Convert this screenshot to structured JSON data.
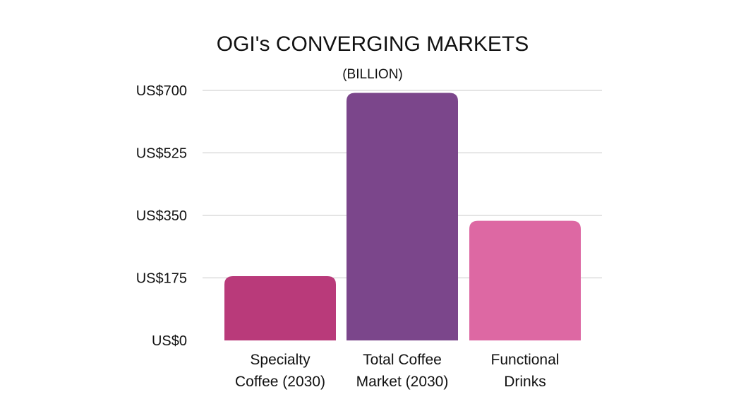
{
  "chart_data": {
    "type": "bar",
    "title": "OGI's CONVERGING MARKETS",
    "subtitle": "(BILLION)",
    "categories": [
      [
        "Specialty",
        "Coffee (2030)"
      ],
      [
        "Total Coffee",
        "Market (2030)"
      ],
      [
        "Functional",
        "Drinks"
      ]
    ],
    "values": [
      180,
      693,
      335
    ],
    "colors": [
      "#b93a7a",
      "#7b468b",
      "#dd68a3"
    ],
    "yticks": [
      0,
      175,
      350,
      525,
      700
    ],
    "ytick_labels": [
      "US$0",
      "US$175",
      "US$350",
      "US$525",
      "US$700"
    ],
    "ylim": [
      0,
      700
    ],
    "grid": true,
    "legend": "none"
  }
}
